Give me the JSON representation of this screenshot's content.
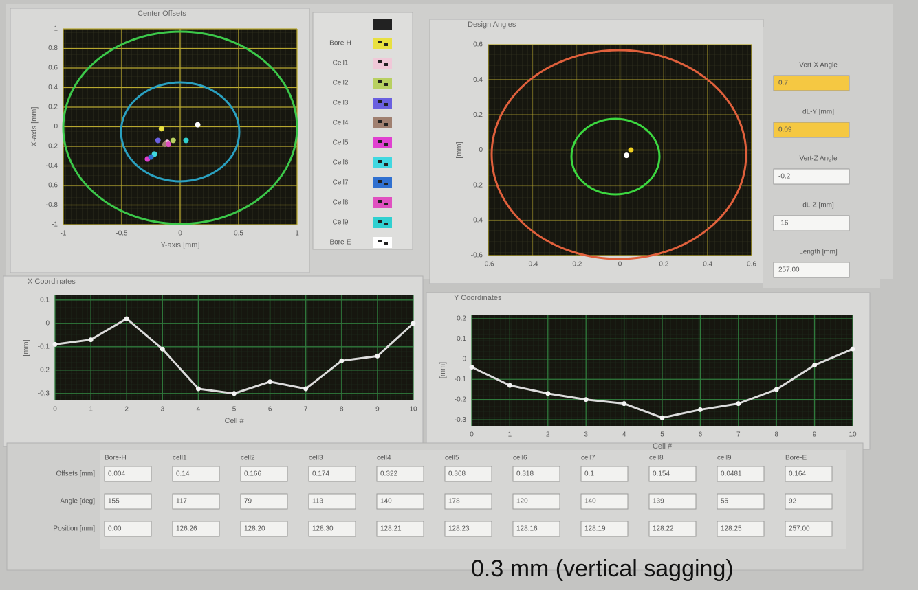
{
  "chart_data": [
    {
      "type": "scatter",
      "title": "Center Offsets",
      "xlabel": "Y-axis [mm]",
      "ylabel": "X-axis [mm]",
      "xlim": [
        -1,
        1
      ],
      "ylim": [
        -1,
        1
      ],
      "xticks": [
        -1,
        -0.5,
        0,
        0.5,
        1
      ],
      "yticks": [
        -1,
        -0.8,
        -0.6,
        -0.4,
        -0.2,
        0,
        0.2,
        0.4,
        0.6,
        0.8,
        1
      ],
      "grid": true,
      "series": [
        {
          "name": "Bore-H",
          "color": "#e8e040",
          "x": [
            -0.16
          ],
          "values": [
            -0.02
          ]
        },
        {
          "name": "Cell1",
          "color": "#f0c8d8",
          "x": [
            -0.11
          ],
          "values": [
            -0.16
          ]
        },
        {
          "name": "Cell2",
          "color": "#b8d060",
          "x": [
            -0.06
          ],
          "values": [
            -0.14
          ]
        },
        {
          "name": "Cell3",
          "color": "#6a60e0",
          "x": [
            -0.19
          ],
          "values": [
            -0.14
          ]
        },
        {
          "name": "Cell4",
          "color": "#a08070",
          "x": [
            -0.13
          ],
          "values": [
            -0.18
          ]
        },
        {
          "name": "Cell5",
          "color": "#e040d0",
          "x": [
            -0.28
          ],
          "values": [
            -0.33
          ]
        },
        {
          "name": "Cell6",
          "color": "#40d8e0",
          "x": [
            -0.22
          ],
          "values": [
            -0.28
          ]
        },
        {
          "name": "Cell7",
          "color": "#3070d0",
          "x": [
            -0.25
          ],
          "values": [
            -0.31
          ]
        },
        {
          "name": "Cell8",
          "color": "#e050c0",
          "x": [
            -0.1
          ],
          "values": [
            -0.18
          ]
        },
        {
          "name": "Cell9",
          "color": "#30d0d0",
          "x": [
            0.05
          ],
          "values": [
            -0.14
          ]
        },
        {
          "name": "Bore-E",
          "color": "#ffffff",
          "x": [
            0.15
          ],
          "values": [
            0.02
          ]
        }
      ]
    },
    {
      "type": "scatter",
      "title": "Design Angles",
      "ylabel": "[mm]",
      "xlim": [
        -0.6,
        0.6
      ],
      "ylim": [
        -0.6,
        0.6
      ],
      "xticks": [
        -0.6,
        -0.4,
        -0.2,
        0,
        0.2,
        0.4,
        0.6
      ],
      "yticks": [
        -0.6,
        -0.4,
        -0.2,
        0,
        0.2,
        0.4,
        0.6
      ],
      "grid": true,
      "series": [
        {
          "color": "#f0d020",
          "x": [
            0.05
          ],
          "values": [
            0.0
          ]
        },
        {
          "color": "#ffffff",
          "x": [
            0.03
          ],
          "values": [
            -0.03
          ]
        }
      ]
    },
    {
      "type": "line",
      "title": "X Coordinates",
      "xlabel": "Cell #",
      "ylabel": "[mm]",
      "xlim": [
        0,
        10
      ],
      "ylim": [
        -0.33,
        0.12
      ],
      "xticks": [
        0,
        1,
        2,
        3,
        4,
        5,
        6,
        7,
        8,
        9,
        10
      ],
      "yticks": [
        -0.3,
        -0.2,
        -0.1,
        0,
        0.1
      ],
      "grid": true,
      "x": [
        0,
        1,
        2,
        3,
        4,
        5,
        6,
        7,
        8,
        9,
        10
      ],
      "values": [
        -0.09,
        -0.07,
        0.02,
        -0.11,
        -0.28,
        -0.3,
        -0.25,
        -0.28,
        -0.16,
        -0.14,
        0
      ],
      "color": "#dcdcdc"
    },
    {
      "type": "line",
      "title": "Y Coordinates",
      "xlabel": "Cell #",
      "ylabel": "[mm]",
      "xlim": [
        0,
        10
      ],
      "ylim": [
        -0.33,
        0.22
      ],
      "xticks": [
        0,
        1,
        2,
        3,
        4,
        5,
        6,
        7,
        8,
        9,
        10
      ],
      "yticks": [
        -0.3,
        -0.2,
        -0.1,
        0,
        0.1,
        0.2
      ],
      "grid": true,
      "x": [
        0,
        1,
        2,
        3,
        4,
        5,
        6,
        7,
        8,
        9,
        10
      ],
      "values": [
        -0.04,
        -0.13,
        -0.17,
        -0.2,
        -0.22,
        -0.29,
        -0.25,
        -0.22,
        -0.15,
        -0.03,
        0.05
      ],
      "color": "#dcdcdc"
    }
  ],
  "controls": [
    {
      "label": "Vert-X Angle",
      "value": "0.7"
    },
    {
      "label": "dL-Y [mm]",
      "value": "0.09"
    },
    {
      "label": "Vert-Z Angle",
      "value": "-0.2"
    },
    {
      "label": "dL-Z [mm]",
      "value": "-16"
    },
    {
      "label": "Length [mm]",
      "value": "257.00"
    }
  ],
  "table": {
    "columns": [
      "Bore-H",
      "cell1",
      "cell2",
      "cell3",
      "cell4",
      "cell5",
      "cell6",
      "cell7",
      "cell8",
      "cell9",
      "Bore-E"
    ],
    "rows": [
      {
        "label": "Offsets [mm]",
        "values": [
          "0.004",
          "0.14",
          "0.166",
          "0.174",
          "0.322",
          "0.368",
          "0.318",
          "0.1",
          "0.154",
          "0.0481",
          "0.164"
        ]
      },
      {
        "label": "Angle [deg]",
        "values": [
          "155",
          "117",
          "79",
          "113",
          "140",
          "178",
          "120",
          "140",
          "139",
          "55",
          "92"
        ]
      },
      {
        "label": "Position [mm]",
        "values": [
          "0.00",
          "126.26",
          "128.20",
          "128.30",
          "128.21",
          "128.23",
          "128.16",
          "128.19",
          "128.22",
          "128.25",
          "257.00"
        ]
      }
    ]
  },
  "caption": "0.3 mm (vertical sagging)"
}
